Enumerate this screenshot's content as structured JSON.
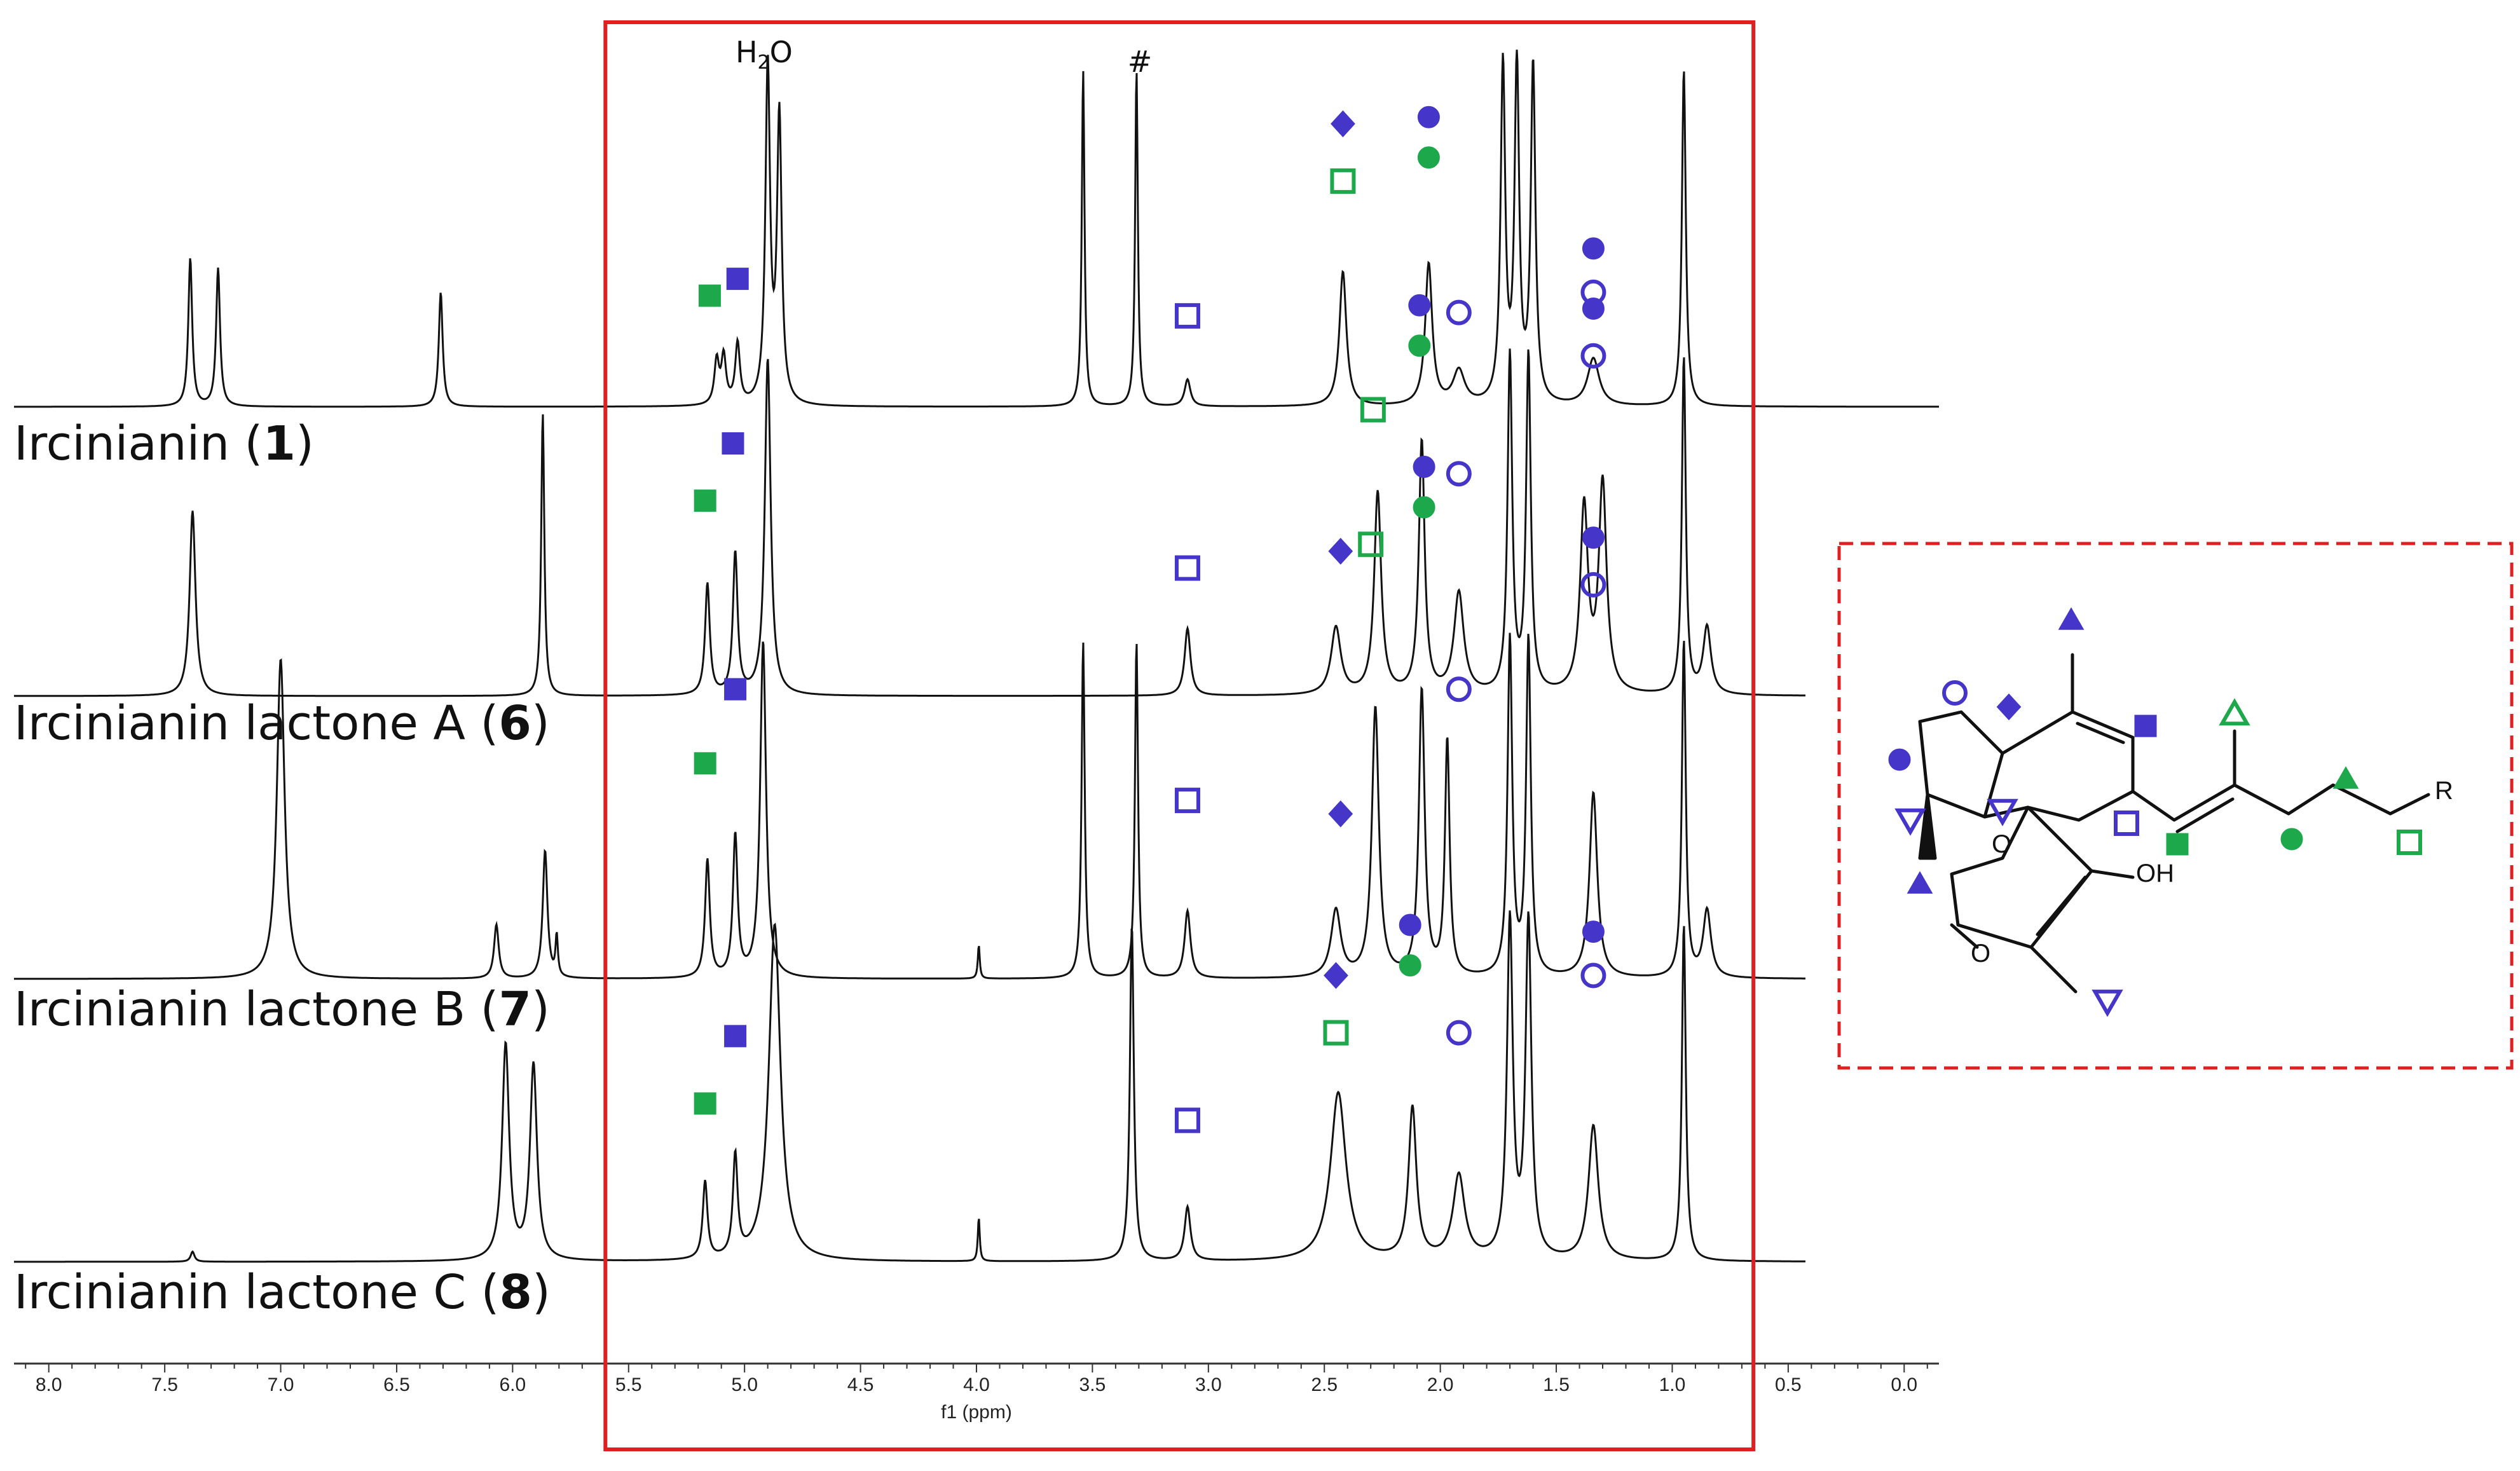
{
  "chart_data": {
    "type": "line",
    "title": "",
    "xlabel": "f1 (ppm)",
    "ylabel": "",
    "x_reversed": true,
    "xlim": [
      8.15,
      -0.15
    ],
    "xticks": [
      "8.0",
      "7.5",
      "7.0",
      "6.5",
      "6.0",
      "5.5",
      "5.0",
      "4.5",
      "4.0",
      "3.5",
      "3.0",
      "2.5",
      "2.0",
      "1.5",
      "1.0",
      "0.5",
      "0.0"
    ],
    "highlight_region_ppm": [
      5.6,
      0.65
    ],
    "solvent_labels": [
      {
        "text_main": "H",
        "text_sub": "2",
        "text_tail": "O",
        "ppm": 4.88
      },
      {
        "text_main": "#",
        "text_sub": "",
        "text_tail": "",
        "ppm": 3.31
      }
    ],
    "series": [
      {
        "name_text": "Ircinianin (",
        "name_num": "1",
        "name_close": ")",
        "peaks": [
          {
            "ppm": 7.39,
            "h": 0.44,
            "w": 0.01
          },
          {
            "ppm": 7.27,
            "h": 0.41,
            "w": 0.01
          },
          {
            "ppm": 6.31,
            "h": 0.34,
            "w": 0.01
          },
          {
            "ppm": 5.12,
            "h": 0.13,
            "w": 0.012
          },
          {
            "ppm": 5.09,
            "h": 0.14,
            "w": 0.012
          },
          {
            "ppm": 5.03,
            "h": 0.18,
            "w": 0.012
          },
          {
            "ppm": 4.9,
            "h": 1.0,
            "w": 0.012
          },
          {
            "ppm": 4.85,
            "h": 0.85,
            "w": 0.012
          },
          {
            "ppm": 3.54,
            "h": 1.0,
            "w": 0.007
          },
          {
            "ppm": 3.31,
            "h": 1.0,
            "w": 0.007
          },
          {
            "ppm": 3.09,
            "h": 0.08,
            "w": 0.015
          },
          {
            "ppm": 2.42,
            "h": 0.4,
            "w": 0.018
          },
          {
            "ppm": 2.05,
            "h": 0.42,
            "w": 0.018
          },
          {
            "ppm": 1.92,
            "h": 0.1,
            "w": 0.03
          },
          {
            "ppm": 1.73,
            "h": 1.0,
            "w": 0.012
          },
          {
            "ppm": 1.67,
            "h": 1.0,
            "w": 0.012
          },
          {
            "ppm": 1.6,
            "h": 1.0,
            "w": 0.012
          },
          {
            "ppm": 1.34,
            "h": 0.14,
            "w": 0.03
          },
          {
            "ppm": 0.95,
            "h": 1.0,
            "w": 0.01
          }
        ]
      },
      {
        "name_text": "Ircinianin lactone A (",
        "name_num": "6",
        "name_close": ")",
        "peaks": [
          {
            "ppm": 7.38,
            "h": 0.55,
            "w": 0.015
          },
          {
            "ppm": 5.87,
            "h": 0.84,
            "w": 0.008
          },
          {
            "ppm": 5.16,
            "h": 0.33,
            "w": 0.012
          },
          {
            "ppm": 5.04,
            "h": 0.42,
            "w": 0.012
          },
          {
            "ppm": 4.9,
            "h": 1.0,
            "w": 0.015
          },
          {
            "ppm": 3.09,
            "h": 0.2,
            "w": 0.015
          },
          {
            "ppm": 2.45,
            "h": 0.2,
            "w": 0.025
          },
          {
            "ppm": 2.27,
            "h": 0.6,
            "w": 0.018
          },
          {
            "ppm": 2.08,
            "h": 0.75,
            "w": 0.015
          },
          {
            "ppm": 1.92,
            "h": 0.3,
            "w": 0.025
          },
          {
            "ppm": 1.7,
            "h": 1.0,
            "w": 0.012
          },
          {
            "ppm": 1.62,
            "h": 1.0,
            "w": 0.012
          },
          {
            "ppm": 1.38,
            "h": 0.55,
            "w": 0.02
          },
          {
            "ppm": 1.3,
            "h": 0.62,
            "w": 0.02
          },
          {
            "ppm": 0.95,
            "h": 1.0,
            "w": 0.01
          },
          {
            "ppm": 0.85,
            "h": 0.2,
            "w": 0.02
          }
        ]
      },
      {
        "name_text": "Ircinianin lactone B (",
        "name_num": "7",
        "name_close": ")",
        "peaks": [
          {
            "ppm": 7.0,
            "h": 0.95,
            "w": 0.02
          },
          {
            "ppm": 6.07,
            "h": 0.16,
            "w": 0.012
          },
          {
            "ppm": 5.86,
            "h": 0.38,
            "w": 0.012
          },
          {
            "ppm": 5.81,
            "h": 0.12,
            "w": 0.006
          },
          {
            "ppm": 5.16,
            "h": 0.35,
            "w": 0.012
          },
          {
            "ppm": 5.04,
            "h": 0.42,
            "w": 0.012
          },
          {
            "ppm": 4.92,
            "h": 1.0,
            "w": 0.015
          },
          {
            "ppm": 3.99,
            "h": 0.1,
            "w": 0.005
          },
          {
            "ppm": 3.54,
            "h": 1.0,
            "w": 0.008
          },
          {
            "ppm": 3.31,
            "h": 1.0,
            "w": 0.008
          },
          {
            "ppm": 3.09,
            "h": 0.2,
            "w": 0.015
          },
          {
            "ppm": 2.45,
            "h": 0.2,
            "w": 0.025
          },
          {
            "ppm": 2.28,
            "h": 0.8,
            "w": 0.018
          },
          {
            "ppm": 2.08,
            "h": 0.85,
            "w": 0.015
          },
          {
            "ppm": 1.97,
            "h": 0.7,
            "w": 0.012
          },
          {
            "ppm": 1.7,
            "h": 1.0,
            "w": 0.012
          },
          {
            "ppm": 1.62,
            "h": 1.0,
            "w": 0.012
          },
          {
            "ppm": 1.34,
            "h": 0.55,
            "w": 0.02
          },
          {
            "ppm": 0.95,
            "h": 1.0,
            "w": 0.01
          },
          {
            "ppm": 0.85,
            "h": 0.2,
            "w": 0.02
          }
        ]
      },
      {
        "name_text": "Ircinianin lactone C (",
        "name_num": "8",
        "name_close": ")",
        "peaks": [
          {
            "ppm": 7.38,
            "h": 0.03,
            "w": 0.01
          },
          {
            "ppm": 6.03,
            "h": 0.64,
            "w": 0.018
          },
          {
            "ppm": 5.91,
            "h": 0.58,
            "w": 0.018
          },
          {
            "ppm": 5.17,
            "h": 0.23,
            "w": 0.012
          },
          {
            "ppm": 5.04,
            "h": 0.3,
            "w": 0.012
          },
          {
            "ppm": 4.87,
            "h": 1.0,
            "w": 0.03
          },
          {
            "ppm": 3.99,
            "h": 0.13,
            "w": 0.005
          },
          {
            "ppm": 3.33,
            "h": 1.0,
            "w": 0.01
          },
          {
            "ppm": 3.09,
            "h": 0.16,
            "w": 0.015
          },
          {
            "ppm": 2.44,
            "h": 0.5,
            "w": 0.04
          },
          {
            "ppm": 2.12,
            "h": 0.45,
            "w": 0.02
          },
          {
            "ppm": 1.92,
            "h": 0.25,
            "w": 0.03
          },
          {
            "ppm": 1.7,
            "h": 1.0,
            "w": 0.015
          },
          {
            "ppm": 1.62,
            "h": 1.0,
            "w": 0.015
          },
          {
            "ppm": 1.34,
            "h": 0.4,
            "w": 0.025
          },
          {
            "ppm": 0.95,
            "h": 1.0,
            "w": 0.01
          }
        ]
      }
    ],
    "markers": [
      {
        "series": 0,
        "ppm": 5.15,
        "h": 0.33,
        "shape": "square",
        "color": "#1ea84c",
        "fill": true
      },
      {
        "series": 0,
        "ppm": 5.03,
        "h": 0.38,
        "shape": "square",
        "color": "#4535c8",
        "fill": true
      },
      {
        "series": 0,
        "ppm": 3.09,
        "h": 0.27,
        "shape": "square",
        "color": "#4535c8",
        "fill": false
      },
      {
        "series": 0,
        "ppm": 2.42,
        "h": 0.84,
        "shape": "diamond",
        "color": "#4535c8",
        "fill": true
      },
      {
        "series": 0,
        "ppm": 2.42,
        "h": 0.67,
        "shape": "square",
        "color": "#1ea84c",
        "fill": false
      },
      {
        "series": 0,
        "ppm": 2.05,
        "h": 0.86,
        "shape": "circle",
        "color": "#4535c8",
        "fill": true
      },
      {
        "series": 0,
        "ppm": 2.05,
        "h": 0.74,
        "shape": "circle",
        "color": "#1ea84c",
        "fill": true
      },
      {
        "series": 0,
        "ppm": 1.92,
        "h": 0.28,
        "shape": "circle",
        "color": "#4535c8",
        "fill": false
      },
      {
        "series": 0,
        "ppm": 1.34,
        "h": 0.47,
        "shape": "circle",
        "color": "#4535c8",
        "fill": true
      },
      {
        "series": 0,
        "ppm": 1.34,
        "h": 0.34,
        "shape": "circle",
        "color": "#4535c8",
        "fill": false
      },
      {
        "series": 0,
        "ppm": 1.75,
        "h": 1.44,
        "shape": "triangle-up",
        "color": "#4535c8",
        "fill": true
      },
      {
        "series": 0,
        "ppm": 1.68,
        "h": 1.5,
        "shape": "triangle-up",
        "color": "#1ea84c",
        "fill": true
      },
      {
        "series": 0,
        "ppm": 1.65,
        "h": 1.43,
        "shape": "triangle-down",
        "color": "#4535c8",
        "fill": false
      },
      {
        "series": 0,
        "ppm": 1.58,
        "h": 1.43,
        "shape": "triangle-up",
        "color": "#1ea84c",
        "fill": false
      },
      {
        "series": 0,
        "ppm": 0.96,
        "h": 1.34,
        "shape": "triangle-up",
        "color": "#4535c8",
        "fill": true
      },
      {
        "series": 1,
        "ppm": 5.17,
        "h": 0.58,
        "shape": "square",
        "color": "#1ea84c",
        "fill": true
      },
      {
        "series": 1,
        "ppm": 5.05,
        "h": 0.75,
        "shape": "square",
        "color": "#4535c8",
        "fill": true
      },
      {
        "series": 1,
        "ppm": 3.09,
        "h": 0.38,
        "shape": "square",
        "color": "#4535c8",
        "fill": false
      },
      {
        "series": 1,
        "ppm": 2.43,
        "h": 0.43,
        "shape": "diamond",
        "color": "#4535c8",
        "fill": true
      },
      {
        "series": 1,
        "ppm": 2.29,
        "h": 0.85,
        "shape": "square",
        "color": "#1ea84c",
        "fill": false
      },
      {
        "series": 1,
        "ppm": 2.09,
        "h": 1.16,
        "shape": "circle",
        "color": "#4535c8",
        "fill": true
      },
      {
        "series": 1,
        "ppm": 2.09,
        "h": 1.04,
        "shape": "circle",
        "color": "#1ea84c",
        "fill": true
      },
      {
        "series": 1,
        "ppm": 1.92,
        "h": 0.66,
        "shape": "circle",
        "color": "#4535c8",
        "fill": false
      },
      {
        "series": 1,
        "ppm": 1.34,
        "h": 1.15,
        "shape": "circle",
        "color": "#4535c8",
        "fill": true
      },
      {
        "series": 1,
        "ppm": 1.34,
        "h": 1.01,
        "shape": "circle",
        "color": "#4535c8",
        "fill": false
      },
      {
        "series": 2,
        "ppm": 5.17,
        "h": 0.64,
        "shape": "square",
        "color": "#1ea84c",
        "fill": true
      },
      {
        "series": 2,
        "ppm": 5.04,
        "h": 0.86,
        "shape": "square",
        "color": "#4535c8",
        "fill": true
      },
      {
        "series": 2,
        "ppm": 3.09,
        "h": 0.53,
        "shape": "square",
        "color": "#4535c8",
        "fill": false
      },
      {
        "series": 2,
        "ppm": 2.43,
        "h": 0.49,
        "shape": "diamond",
        "color": "#4535c8",
        "fill": true
      },
      {
        "series": 2,
        "ppm": 2.3,
        "h": 1.29,
        "shape": "square",
        "color": "#1ea84c",
        "fill": false
      },
      {
        "series": 2,
        "ppm": 2.07,
        "h": 1.52,
        "shape": "circle",
        "color": "#4535c8",
        "fill": true
      },
      {
        "series": 2,
        "ppm": 2.07,
        "h": 1.4,
        "shape": "circle",
        "color": "#1ea84c",
        "fill": true
      },
      {
        "series": 2,
        "ppm": 1.92,
        "h": 0.86,
        "shape": "circle",
        "color": "#4535c8",
        "fill": false
      },
      {
        "series": 2,
        "ppm": 1.34,
        "h": 1.31,
        "shape": "circle",
        "color": "#4535c8",
        "fill": true
      },
      {
        "series": 2,
        "ppm": 1.34,
        "h": 1.17,
        "shape": "circle",
        "color": "#4535c8",
        "fill": false
      },
      {
        "series": 3,
        "ppm": 5.17,
        "h": 0.47,
        "shape": "square",
        "color": "#1ea84c",
        "fill": true
      },
      {
        "series": 3,
        "ppm": 5.04,
        "h": 0.67,
        "shape": "square",
        "color": "#4535c8",
        "fill": true
      },
      {
        "series": 3,
        "ppm": 3.09,
        "h": 0.42,
        "shape": "square",
        "color": "#4535c8",
        "fill": false
      },
      {
        "series": 3,
        "ppm": 2.45,
        "h": 0.85,
        "shape": "diamond",
        "color": "#4535c8",
        "fill": true
      },
      {
        "series": 3,
        "ppm": 2.45,
        "h": 0.68,
        "shape": "square",
        "color": "#1ea84c",
        "fill": false
      },
      {
        "series": 3,
        "ppm": 2.13,
        "h": 1.0,
        "shape": "circle",
        "color": "#4535c8",
        "fill": true
      },
      {
        "series": 3,
        "ppm": 2.13,
        "h": 0.88,
        "shape": "circle",
        "color": "#1ea84c",
        "fill": true
      },
      {
        "series": 3,
        "ppm": 1.92,
        "h": 0.68,
        "shape": "circle",
        "color": "#4535c8",
        "fill": false
      },
      {
        "series": 3,
        "ppm": 1.34,
        "h": 0.98,
        "shape": "circle",
        "color": "#4535c8",
        "fill": true
      },
      {
        "series": 3,
        "ppm": 1.34,
        "h": 0.85,
        "shape": "circle",
        "color": "#4535c8",
        "fill": false
      }
    ],
    "structure_labels": {
      "oh": "OH",
      "o_ring": "O",
      "o_carbonyl": "O",
      "r": "R"
    }
  }
}
